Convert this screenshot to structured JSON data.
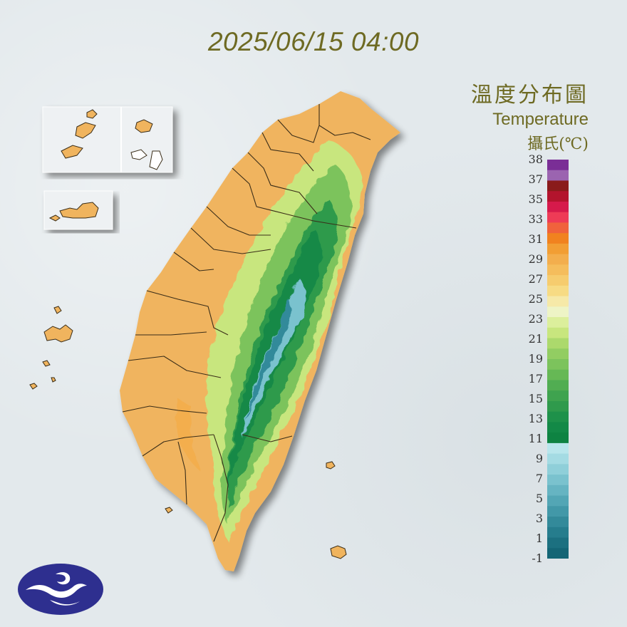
{
  "header": {
    "timestamp": "2025/06/15 04:00"
  },
  "legend": {
    "title_zh": "溫度分布圖",
    "title_en": "Temperature",
    "unit": "攝氏(℃)",
    "tick_labels": [
      "38",
      "37",
      "35",
      "33",
      "31",
      "29",
      "27",
      "25",
      "23",
      "21",
      "19",
      "17",
      "15",
      "13",
      "11",
      "9",
      "7",
      "5",
      "3",
      "1",
      "-1"
    ],
    "color_bands": [
      {
        "range": "38+",
        "color": "#7a2e96"
      },
      {
        "range": "37-38",
        "color": "#9b64b0"
      },
      {
        "range": "36-37",
        "color": "#8a1b1b"
      },
      {
        "range": "35-36",
        "color": "#b3142d"
      },
      {
        "range": "34-35",
        "color": "#d61a4b"
      },
      {
        "range": "33-34",
        "color": "#ee3b56"
      },
      {
        "range": "32-33",
        "color": "#f0623c"
      },
      {
        "range": "31-32",
        "color": "#f1821f"
      },
      {
        "range": "30-31",
        "color": "#f29e34"
      },
      {
        "range": "29-30",
        "color": "#f3ae4d"
      },
      {
        "range": "28-29",
        "color": "#f5bd5c"
      },
      {
        "range": "27-28",
        "color": "#f6cc6e"
      },
      {
        "range": "26-27",
        "color": "#f7db84"
      },
      {
        "range": "25-26",
        "color": "#f6e9a8"
      },
      {
        "range": "24-25",
        "color": "#eef4c6"
      },
      {
        "range": "23-24",
        "color": "#dcef9c"
      },
      {
        "range": "22-23",
        "color": "#c8e67e"
      },
      {
        "range": "21-22",
        "color": "#acd96c"
      },
      {
        "range": "20-21",
        "color": "#92cd62"
      },
      {
        "range": "19-20",
        "color": "#7cc35c"
      },
      {
        "range": "18-19",
        "color": "#66b855"
      },
      {
        "range": "17-18",
        "color": "#51ad52"
      },
      {
        "range": "16-17",
        "color": "#3fa34f"
      },
      {
        "range": "15-16",
        "color": "#2f9a4c"
      },
      {
        "range": "14-15",
        "color": "#1e914a"
      },
      {
        "range": "13-14",
        "color": "#138947"
      },
      {
        "range": "12-13",
        "color": "#0e8342"
      },
      {
        "range": "11-12",
        "color": "#b9e6ec"
      },
      {
        "range": "10-11",
        "color": "#a4dbe3"
      },
      {
        "range": "9-10",
        "color": "#8fcfd9"
      },
      {
        "range": "8-9",
        "color": "#7ac2ce"
      },
      {
        "range": "7-8",
        "color": "#66b4c2"
      },
      {
        "range": "6-7",
        "color": "#53a6b5"
      },
      {
        "range": "5-6",
        "color": "#4298a8"
      },
      {
        "range": "4-5",
        "color": "#338a9a"
      },
      {
        "range": "3-4",
        "color": "#267d8d"
      },
      {
        "range": "2-3",
        "color": "#1c7080"
      },
      {
        "range": "<2",
        "color": "#146575"
      }
    ]
  },
  "map": {
    "lowland_color": "#f0b45e",
    "foothill_color": "#a6d56a",
    "mountain_color": "#3ea04e",
    "peak_color": "#5ab7c8",
    "outline_color": "#4a3b20",
    "inset_background": "#eef1f3"
  }
}
